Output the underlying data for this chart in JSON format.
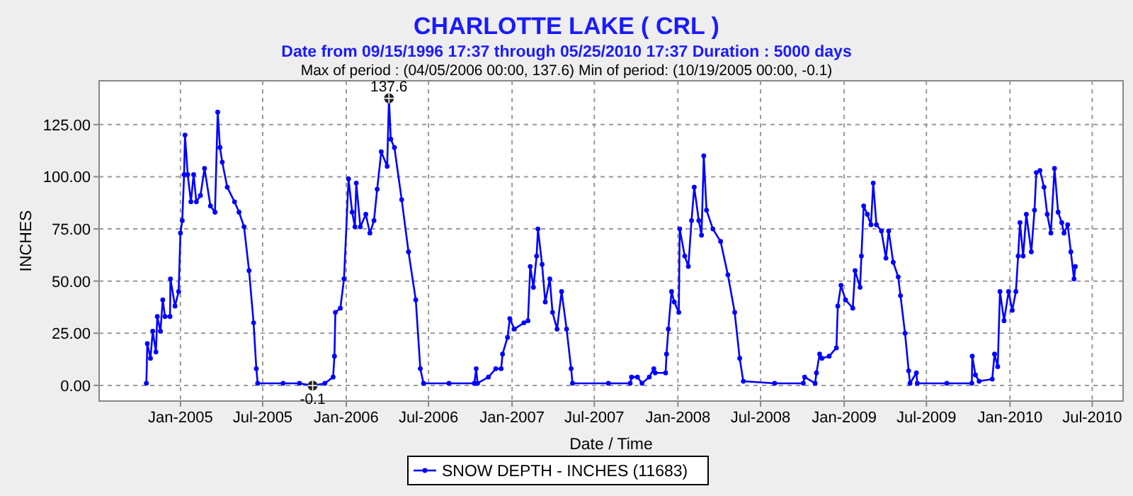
{
  "chart_data": {
    "type": "line",
    "title": "CHARLOTTE LAKE ( CRL )",
    "subtitle": "Date from 09/15/1996 17:37 through 05/25/2010 17:37 Duration : 5000 days",
    "xlabel": "Date / Time",
    "ylabel": "INCHES",
    "annotations": [
      "Max of period : (04/05/2006 00:00, 137.6)  Min of period: (10/19/2005 00:00,  -0.1)",
      {
        "text": "137.6",
        "x": "2006-04-05",
        "y": 137.6
      },
      {
        "text": "-0.1",
        "x": "2005-10-19",
        "y": -0.1
      }
    ],
    "xlim": [
      "2004-07-06",
      "2010-09-07"
    ],
    "xticks": [
      {
        "value": "2005-01-01",
        "label": "Jan-2005"
      },
      {
        "value": "2005-07-01",
        "label": "Jul-2005"
      },
      {
        "value": "2006-01-01",
        "label": "Jan-2006"
      },
      {
        "value": "2006-07-01",
        "label": "Jul-2006"
      },
      {
        "value": "2007-01-01",
        "label": "Jan-2007"
      },
      {
        "value": "2007-07-01",
        "label": "Jul-2007"
      },
      {
        "value": "2008-01-01",
        "label": "Jan-2008"
      },
      {
        "value": "2008-07-01",
        "label": "Jul-2008"
      },
      {
        "value": "2009-01-01",
        "label": "Jan-2009"
      },
      {
        "value": "2009-07-01",
        "label": "Jul-2009"
      },
      {
        "value": "2010-01-01",
        "label": "Jan-2010"
      },
      {
        "value": "2010-07-01",
        "label": "Jul-2010"
      }
    ],
    "ylim": [
      -7.5,
      146
    ],
    "yticks": [
      {
        "value": 0,
        "label": "0.00"
      },
      {
        "value": 25,
        "label": "25.00"
      },
      {
        "value": 50,
        "label": "50.00"
      },
      {
        "value": 75,
        "label": "75.00"
      },
      {
        "value": 100,
        "label": "100.00"
      },
      {
        "value": 125,
        "label": "125.00"
      }
    ],
    "grid": true,
    "legend": "bottom",
    "marker": "circle",
    "line_style": "solid",
    "series": [
      {
        "name": "SNOW DEPTH - INCHES (11683)",
        "color": "#0000ff",
        "x": [
          "2004-10-18",
          "2004-10-20",
          "2004-10-27",
          "2004-11-01",
          "2004-11-08",
          "2004-11-11",
          "2004-11-18",
          "2004-11-23",
          "2004-11-28",
          "2004-12-09",
          "2004-12-10",
          "2004-12-20",
          "2004-12-28",
          "2005-01-01",
          "2005-01-05",
          "2005-01-09",
          "2005-01-11",
          "2005-01-17",
          "2005-01-24",
          "2005-01-30",
          "2005-02-05",
          "2005-02-14",
          "2005-02-23",
          "2005-03-08",
          "2005-03-18",
          "2005-03-24",
          "2005-03-29",
          "2005-04-03",
          "2005-04-14",
          "2005-04-30",
          "2005-05-10",
          "2005-05-21",
          "2005-06-01",
          "2005-06-11",
          "2005-06-17",
          "2005-06-20",
          "2005-08-15",
          "2005-09-20",
          "2005-10-19",
          "2005-11-15",
          "2005-12-03",
          "2005-12-06",
          "2005-12-08",
          "2005-12-19",
          "2005-12-27",
          "2006-01-06",
          "2006-01-14",
          "2006-01-20",
          "2006-01-23",
          "2006-02-01",
          "2006-02-13",
          "2006-02-22",
          "2006-03-03",
          "2006-03-10",
          "2006-03-19",
          "2006-04-01",
          "2006-04-05",
          "2006-04-09",
          "2006-04-17",
          "2006-05-03",
          "2006-05-18",
          "2006-06-03",
          "2006-06-13",
          "2006-06-20",
          "2006-08-15",
          "2006-10-10",
          "2006-10-14",
          "2006-10-17",
          "2006-11-10",
          "2006-11-26",
          "2006-12-08",
          "2006-12-11",
          "2006-12-22",
          "2006-12-27",
          "2007-01-06",
          "2007-01-27",
          "2007-02-05",
          "2007-02-10",
          "2007-02-17",
          "2007-02-24",
          "2007-02-27",
          "2007-03-08",
          "2007-03-15",
          "2007-03-25",
          "2007-03-31",
          "2007-04-10",
          "2007-04-20",
          "2007-05-01",
          "2007-05-11",
          "2007-05-14",
          "2007-08-01",
          "2007-09-18",
          "2007-09-21",
          "2007-10-04",
          "2007-10-14",
          "2007-10-30",
          "2007-11-09",
          "2007-11-12",
          "2007-12-05",
          "2007-12-07",
          "2007-12-11",
          "2007-12-18",
          "2007-12-24",
          "2008-01-03",
          "2008-01-05",
          "2008-01-16",
          "2008-01-24",
          "2008-01-31",
          "2008-02-06",
          "2008-02-16",
          "2008-02-22",
          "2008-02-27",
          "2008-03-04",
          "2008-03-18",
          "2008-04-04",
          "2008-04-20",
          "2008-05-05",
          "2008-05-16",
          "2008-05-24",
          "2008-08-01",
          "2008-10-03",
          "2008-10-06",
          "2008-10-29",
          "2008-11-01",
          "2008-11-08",
          "2008-11-13",
          "2008-11-29",
          "2008-12-15",
          "2008-12-18",
          "2008-12-25",
          "2009-01-04",
          "2009-01-20",
          "2009-01-25",
          "2009-02-05",
          "2009-02-08",
          "2009-02-13",
          "2009-02-21",
          "2009-03-01",
          "2009-03-06",
          "2009-03-13",
          "2009-03-24",
          "2009-04-03",
          "2009-04-09",
          "2009-04-19",
          "2009-04-30",
          "2009-05-05",
          "2009-05-15",
          "2009-05-23",
          "2009-05-26",
          "2009-06-09",
          "2009-06-11",
          "2009-08-15",
          "2009-10-09",
          "2009-10-10",
          "2009-10-17",
          "2009-10-25",
          "2009-11-23",
          "2009-11-28",
          "2009-12-05",
          "2009-12-10",
          "2009-12-19",
          "2009-12-29",
          "2010-01-06",
          "2010-01-14",
          "2010-01-19",
          "2010-01-23",
          "2010-01-30",
          "2010-02-06",
          "2010-02-17",
          "2010-02-24",
          "2010-02-28",
          "2010-03-08",
          "2010-03-17",
          "2010-03-24",
          "2010-04-01",
          "2010-04-09",
          "2010-04-17",
          "2010-04-25",
          "2010-04-30",
          "2010-05-08",
          "2010-05-15",
          "2010-05-22",
          "2010-05-25"
        ],
        "values": [
          1,
          20,
          13,
          26,
          16,
          33,
          26,
          41,
          33,
          33,
          51,
          38,
          45,
          73,
          79,
          101,
          120,
          101,
          88,
          101,
          88,
          91,
          104,
          86,
          83,
          131,
          114,
          107,
          95,
          88,
          83,
          76,
          55,
          30,
          8,
          1,
          1,
          1,
          -0.1,
          1,
          4,
          14,
          35,
          37,
          51,
          99,
          83,
          76,
          97,
          76,
          82,
          73,
          79,
          94,
          112,
          105,
          137.6,
          118,
          114,
          89,
          64,
          41,
          8,
          1,
          1,
          1,
          8,
          1,
          4,
          8,
          8,
          15,
          23,
          32,
          27,
          30,
          31,
          57,
          47,
          62,
          75,
          58,
          40,
          51,
          35,
          27,
          45,
          27,
          8,
          1,
          1,
          1,
          4,
          4,
          1,
          4,
          8,
          6,
          6,
          15,
          27,
          45,
          40,
          35,
          75,
          62,
          57,
          79,
          95,
          79,
          72,
          110,
          84,
          75,
          69,
          53,
          35,
          13,
          2,
          1,
          1,
          4,
          1,
          6,
          15,
          13,
          14,
          18,
          38,
          48,
          41,
          37,
          55,
          47,
          62,
          86,
          82,
          77,
          97,
          77,
          74,
          61,
          74,
          59,
          52,
          43,
          25,
          7,
          1,
          6,
          1,
          1,
          1,
          14,
          5,
          2,
          3,
          15,
          9,
          45,
          31,
          45,
          36,
          45,
          62,
          78,
          62,
          82,
          64,
          84,
          102,
          103,
          95,
          82,
          73,
          104,
          83,
          78,
          73,
          77,
          64,
          51,
          57
        ]
      }
    ]
  }
}
